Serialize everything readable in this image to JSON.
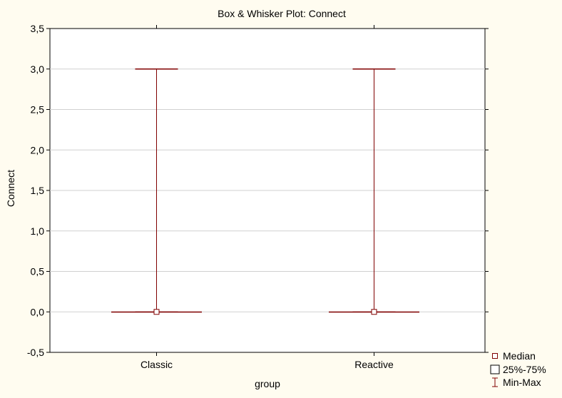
{
  "chart_data": {
    "type": "box",
    "title": "Box & Whisker Plot:  Connect",
    "xlabel": "group",
    "ylabel": "Connect",
    "ylim": [
      -0.5,
      3.5
    ],
    "y_ticks": [
      "-0,5",
      "0,0",
      "0,5",
      "1,0",
      "1,5",
      "2,0",
      "2,5",
      "3,0",
      "3,5"
    ],
    "y_tick_values": [
      -0.5,
      0.0,
      0.5,
      1.0,
      1.5,
      2.0,
      2.5,
      3.0,
      3.5
    ],
    "grid": true,
    "legend_position": "bottom-right",
    "categories": [
      "Classic",
      "Reactive"
    ],
    "series": [
      {
        "category": "Classic",
        "median": 0.0,
        "q1": 0.0,
        "q3": 0.0,
        "min": 0.0,
        "max": 3.0
      },
      {
        "category": "Reactive",
        "median": 0.0,
        "q1": 0.0,
        "q3": 0.0,
        "min": 0.0,
        "max": 3.0
      }
    ],
    "legend": [
      {
        "label": "Median",
        "symbol": "small-square"
      },
      {
        "label": "25%-75%",
        "symbol": "box"
      },
      {
        "label": "Min-Max",
        "symbol": "whisker"
      }
    ],
    "colors": {
      "series": "#800000",
      "grid": "#d0d0d0",
      "background": "#fffcf0",
      "plot": "#ffffff"
    }
  }
}
